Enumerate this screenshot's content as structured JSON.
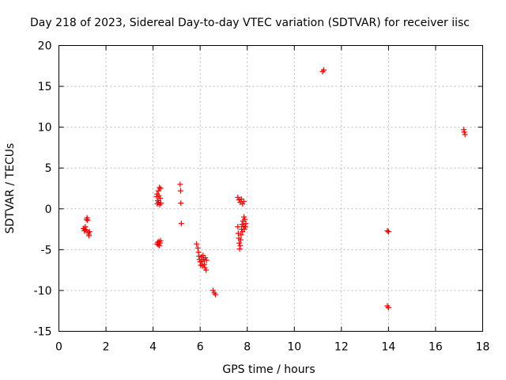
{
  "chart_data": {
    "type": "scatter",
    "title": "Day 218 of 2023, Sidereal Day-to-day VTEC variation (SDTVAR) for receiver iisc",
    "xlabel": "GPS time / hours",
    "ylabel": "SDTVAR / TECUs",
    "xlim": [
      0,
      18
    ],
    "ylim": [
      -15,
      20
    ],
    "xticks": [
      0,
      2,
      4,
      6,
      8,
      10,
      12,
      14,
      16,
      18
    ],
    "yticks": [
      -15,
      -10,
      -5,
      0,
      5,
      10,
      15,
      20
    ],
    "xtick_labels": [
      "0",
      "2",
      "4",
      "6",
      "8",
      "10",
      "12",
      "14",
      "16",
      "18"
    ],
    "ytick_labels": [
      "-15",
      "-10",
      "-5",
      "0",
      "5",
      "10",
      "15",
      "20"
    ],
    "grid": true,
    "marker": "+",
    "color": "#ff0000",
    "series": [
      {
        "name": "SDTVAR",
        "points": [
          [
            1.05,
            -2.4
          ],
          [
            1.08,
            -2.7
          ],
          [
            1.1,
            -2.5
          ],
          [
            1.12,
            -2.2
          ],
          [
            1.15,
            -2.6
          ],
          [
            1.18,
            -1.3
          ],
          [
            1.2,
            -1.1
          ],
          [
            1.22,
            -1.4
          ],
          [
            1.25,
            -2.9
          ],
          [
            1.27,
            -3.1
          ],
          [
            1.28,
            -3.3
          ],
          [
            1.3,
            -2.8
          ],
          [
            4.15,
            1.5
          ],
          [
            4.17,
            1.8
          ],
          [
            4.18,
            0.6
          ],
          [
            4.2,
            1.0
          ],
          [
            4.22,
            2.2
          ],
          [
            4.23,
            0.8
          ],
          [
            4.25,
            1.6
          ],
          [
            4.27,
            2.6
          ],
          [
            4.28,
            0.5
          ],
          [
            4.3,
            1.3
          ],
          [
            4.32,
            2.5
          ],
          [
            4.33,
            0.7
          ],
          [
            4.17,
            -4.3
          ],
          [
            4.2,
            -4.1
          ],
          [
            4.22,
            -4.4
          ],
          [
            4.25,
            -4.0
          ],
          [
            4.27,
            -4.5
          ],
          [
            4.3,
            -4.2
          ],
          [
            4.32,
            -3.9
          ],
          [
            5.15,
            3.0
          ],
          [
            5.17,
            2.2
          ],
          [
            5.18,
            0.7
          ],
          [
            5.2,
            -1.8
          ],
          [
            5.85,
            -4.3
          ],
          [
            5.9,
            -4.8
          ],
          [
            5.93,
            -5.3
          ],
          [
            5.95,
            -5.8
          ],
          [
            5.97,
            -6.2
          ],
          [
            6.0,
            -6.5
          ],
          [
            6.03,
            -6.9
          ],
          [
            6.05,
            -5.9
          ],
          [
            6.08,
            -6.4
          ],
          [
            6.1,
            -7.0
          ],
          [
            6.12,
            -5.7
          ],
          [
            6.15,
            -6.2
          ],
          [
            6.18,
            -6.8
          ],
          [
            6.2,
            -7.2
          ],
          [
            6.22,
            -6.0
          ],
          [
            6.25,
            -7.5
          ],
          [
            6.27,
            -6.3
          ],
          [
            6.55,
            -10.0
          ],
          [
            6.6,
            -10.3
          ],
          [
            6.65,
            -10.5
          ],
          [
            7.6,
            1.4
          ],
          [
            7.65,
            1.1
          ],
          [
            7.7,
            0.8
          ],
          [
            7.75,
            1.2
          ],
          [
            7.8,
            0.6
          ],
          [
            7.85,
            0.9
          ],
          [
            7.6,
            -2.2
          ],
          [
            7.62,
            -3.0
          ],
          [
            7.64,
            -3.6
          ],
          [
            7.66,
            -4.2
          ],
          [
            7.68,
            -4.9
          ],
          [
            7.7,
            -4.5
          ],
          [
            7.72,
            -3.8
          ],
          [
            7.74,
            -3.2
          ],
          [
            7.76,
            -2.5
          ],
          [
            7.78,
            -1.9
          ],
          [
            7.8,
            -2.8
          ],
          [
            7.82,
            -1.5
          ],
          [
            7.84,
            -2.1
          ],
          [
            7.86,
            -1.0
          ],
          [
            7.88,
            -2.5
          ],
          [
            7.9,
            -1.3
          ],
          [
            7.92,
            -2.2
          ],
          [
            7.94,
            -1.8
          ],
          [
            11.2,
            16.8
          ],
          [
            11.25,
            17.0
          ],
          [
            13.95,
            -2.7
          ],
          [
            14.0,
            -2.8
          ],
          [
            13.95,
            -11.9
          ],
          [
            14.0,
            -12.1
          ],
          [
            17.2,
            9.7
          ],
          [
            17.22,
            9.4
          ],
          [
            17.25,
            9.1
          ]
        ]
      }
    ]
  }
}
